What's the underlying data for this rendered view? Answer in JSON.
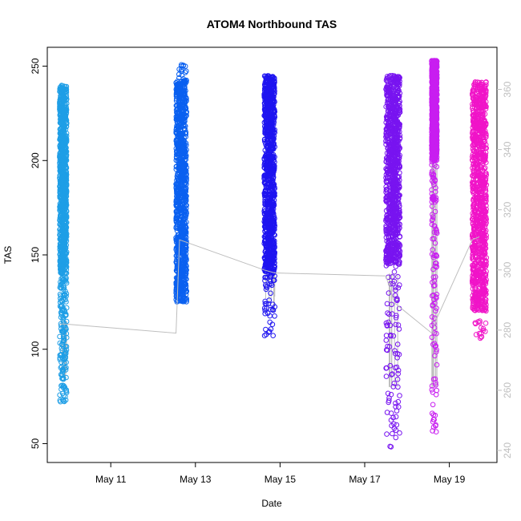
{
  "chart_data": {
    "type": "scatter",
    "title": "ATOM4 Northbound TAS",
    "xlabel": "Date",
    "ylabel": "TAS",
    "x_ticks": [
      "May 11",
      "May 13",
      "May 15",
      "May 17",
      "May 19"
    ],
    "xlim": [
      "2016-05-09T12:00",
      "2016-05-20T03:00"
    ],
    "ylim": [
      40,
      260
    ],
    "y_ticks": [
      50,
      100,
      150,
      200,
      250
    ],
    "y2lim": [
      236,
      374
    ],
    "y2_ticks": [
      240,
      260,
      280,
      300,
      320,
      340,
      360
    ],
    "y2_color": "#bebebe",
    "grid": false,
    "marker": "open-circle",
    "series": [
      {
        "color": "#1e9ee6",
        "x_range": [
          "2016-05-09T19:00",
          "2016-05-09T23:00"
        ],
        "dense_range": [
          140,
          240
        ],
        "sparse_range": [
          72,
          140
        ],
        "tail_max": 115
      },
      {
        "color": "#0a60f0",
        "x_range": [
          "2016-05-12T13:00",
          "2016-05-12T19:00"
        ],
        "dense_range": [
          125,
          243
        ],
        "sparse_range": [
          122,
          251
        ],
        "tail_max": 130
      },
      {
        "color": "#1e14f0",
        "x_range": [
          "2016-05-14T15:00",
          "2016-05-14T21:00"
        ],
        "dense_range": [
          140,
          245
        ],
        "sparse_range": [
          107,
          245
        ],
        "tail_max": 140
      },
      {
        "color": "#7814f0",
        "x_range": [
          "2016-05-17T12:00",
          "2016-05-17T20:00"
        ],
        "dense_range": [
          145,
          245
        ],
        "sparse_range": [
          47,
          245
        ],
        "tail_max": 140
      },
      {
        "color": "#c81ef0",
        "x_range": [
          "2016-05-18T14:00",
          "2016-05-18T17:00"
        ],
        "dense_range": [
          200,
          253
        ],
        "sparse_range": [
          56,
          253
        ],
        "tail_max": 200
      },
      {
        "color": "#f014c8",
        "x_range": [
          "2016-05-19T13:00",
          "2016-05-19T21:00"
        ],
        "dense_range": [
          120,
          242
        ],
        "sparse_range": [
          105,
          242
        ],
        "tail_max": 120
      }
    ],
    "secondary_line": {
      "color": "#bebebe",
      "x": [
        "2016-05-09T19:00",
        "2016-05-09T22:00",
        "2016-05-12T13:00",
        "2016-05-12T15:00",
        "2016-05-14T15:00",
        "2016-05-14T21:00",
        "2016-05-17T12:00",
        "2016-05-17T17:00",
        "2016-05-18T14:00",
        "2016-05-18T17:00",
        "2016-05-19T13:00",
        "2016-05-19T17:00"
      ],
      "y2": [
        282,
        282,
        279,
        310,
        300,
        299,
        298,
        289,
        279,
        284,
        310,
        311
      ]
    }
  }
}
